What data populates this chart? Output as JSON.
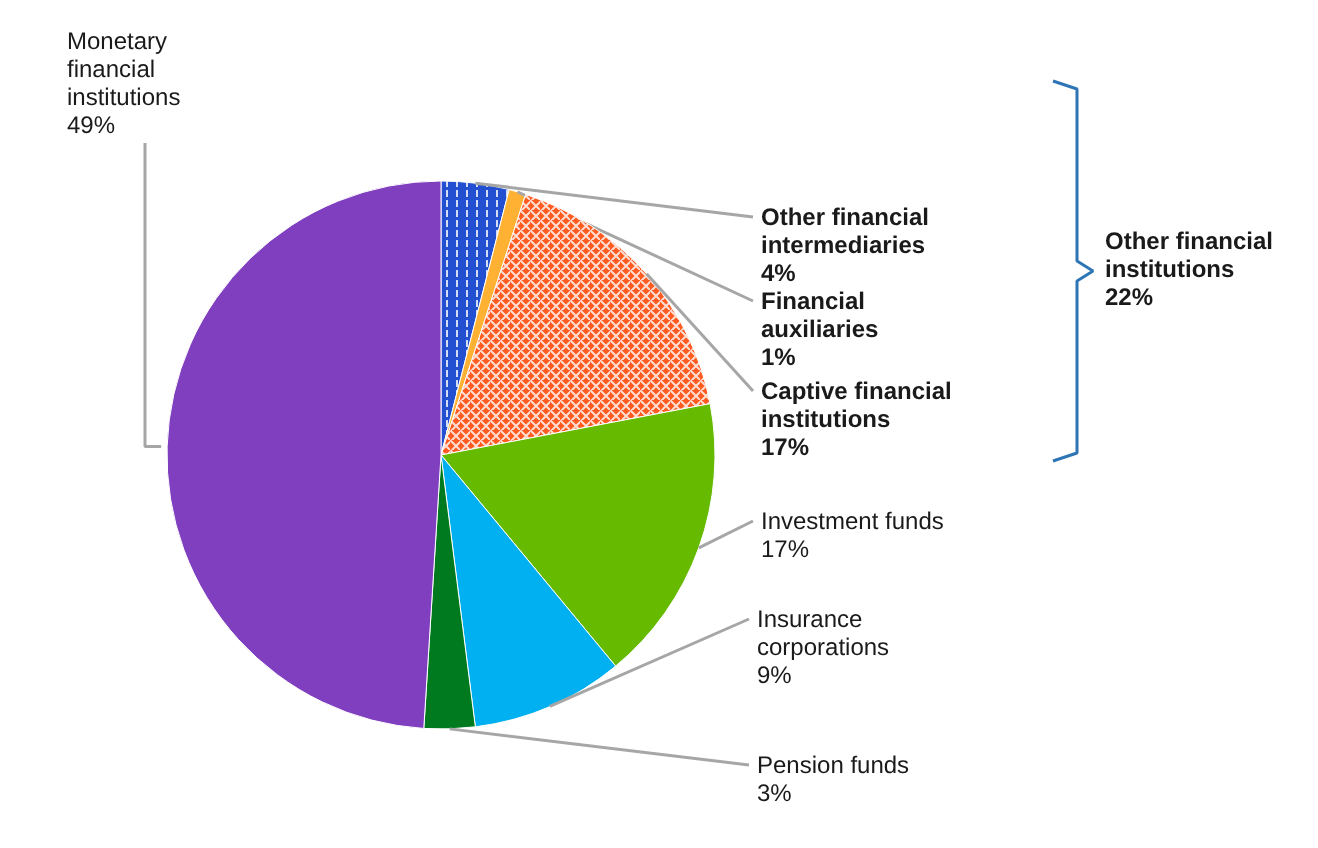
{
  "chart_data": {
    "type": "pie",
    "categories": [
      "Other financial intermediaries",
      "Financial auxiliaries",
      "Captive financial institutions",
      "Investment funds",
      "Insurance corporations",
      "Pension funds",
      "Monetary financial institutions"
    ],
    "values": [
      4,
      1,
      17,
      17,
      9,
      3,
      49
    ],
    "value_labels": [
      "4%",
      "1%",
      "17%",
      "17%",
      "9%",
      "3%",
      "49%"
    ],
    "colors": [
      "#2250d0",
      "#ffb133",
      "#ff5a1f",
      "#66bb00",
      "#00b0f0",
      "#007a1f",
      "#7f3fbf"
    ],
    "annotations": [
      "Other financial institutions 22%"
    ]
  }
}
